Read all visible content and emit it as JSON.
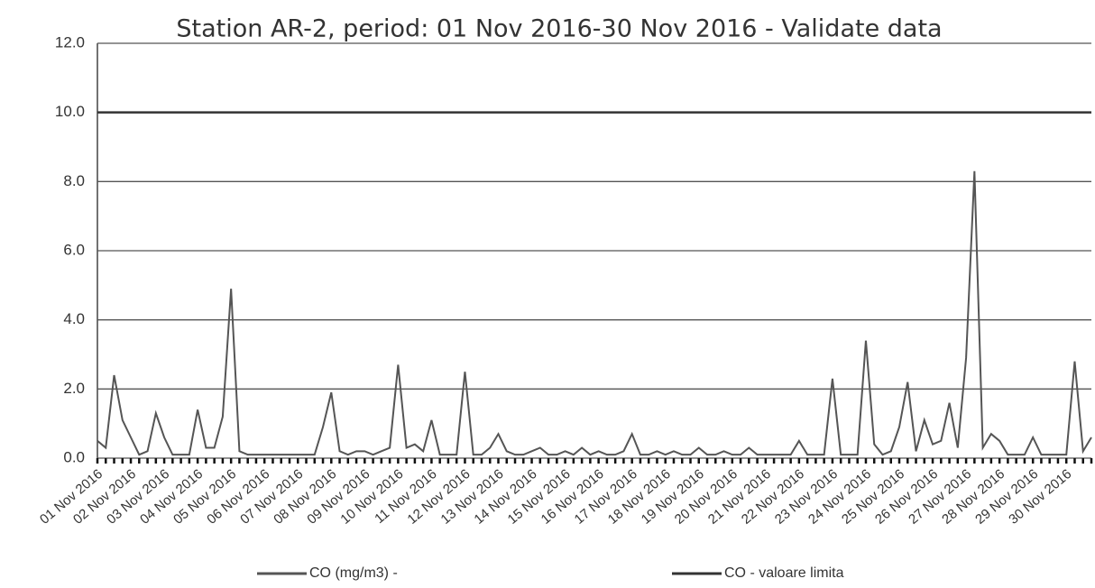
{
  "chart_data": {
    "type": "line",
    "title": "Station AR-2, period: 01 Nov 2016-30 Nov 2016 - Validate data",
    "categories": [
      "01 Nov 2016",
      null,
      null,
      null,
      "02 Nov 2016",
      null,
      null,
      null,
      "03 Nov 2016",
      null,
      null,
      null,
      "04 Nov 2016",
      null,
      null,
      null,
      "05 Nov 2016",
      null,
      null,
      null,
      "06 Nov 2016",
      null,
      null,
      null,
      "07 Nov 2016",
      null,
      null,
      null,
      "08 Nov 2016",
      null,
      null,
      null,
      "09 Nov 2016",
      null,
      null,
      null,
      "10 Nov 2016",
      null,
      null,
      null,
      "11 Nov 2016",
      null,
      null,
      null,
      "12 Nov 2016",
      null,
      null,
      null,
      "13 Nov 2016",
      null,
      null,
      null,
      "14 Nov 2016",
      null,
      null,
      null,
      "15 Nov 2016",
      null,
      null,
      null,
      "16 Nov 2016",
      null,
      null,
      null,
      "17 Nov 2016",
      null,
      null,
      null,
      "18 Nov 2016",
      null,
      null,
      null,
      "19 Nov 2016",
      null,
      null,
      null,
      "20 Nov 2016",
      null,
      null,
      null,
      "21 Nov 2016",
      null,
      null,
      null,
      "22 Nov 2016",
      null,
      null,
      null,
      "23 Nov 2016",
      null,
      null,
      null,
      "24 Nov 2016",
      null,
      null,
      null,
      "25 Nov 2016",
      null,
      null,
      null,
      "26 Nov 2016",
      null,
      null,
      null,
      "27 Nov 2016",
      null,
      null,
      null,
      "28 Nov 2016",
      null,
      null,
      null,
      "29 Nov 2016",
      null,
      null,
      null,
      "30 Nov 2016",
      null,
      null,
      null
    ],
    "series": [
      {
        "name": "CO (mg/m3) -",
        "color": "#555555",
        "values": [
          0.5,
          0.3,
          2.4,
          1.1,
          0.6,
          0.1,
          0.2,
          1.3,
          0.6,
          0.1,
          0.1,
          0.1,
          1.4,
          0.3,
          0.3,
          1.2,
          4.9,
          0.2,
          0.1,
          0.1,
          0.1,
          0.1,
          0.1,
          0.1,
          0.1,
          0.1,
          0.1,
          0.9,
          1.9,
          0.2,
          0.1,
          0.2,
          0.2,
          0.1,
          0.2,
          0.3,
          2.7,
          0.3,
          0.4,
          0.2,
          1.1,
          0.1,
          0.1,
          0.1,
          2.5,
          0.1,
          0.1,
          0.3,
          0.7,
          0.2,
          0.1,
          0.1,
          0.2,
          0.3,
          0.1,
          0.1,
          0.2,
          0.1,
          0.3,
          0.1,
          0.2,
          0.1,
          0.1,
          0.2,
          0.7,
          0.1,
          0.1,
          0.2,
          0.1,
          0.2,
          0.1,
          0.1,
          0.3,
          0.1,
          0.1,
          0.2,
          0.1,
          0.1,
          0.3,
          0.1,
          0.1,
          0.1,
          0.1,
          0.1,
          0.5,
          0.1,
          0.1,
          0.1,
          2.3,
          0.1,
          0.1,
          0.1,
          3.4,
          0.4,
          0.1,
          0.2,
          0.9,
          2.2,
          0.2,
          1.1,
          0.4,
          0.5,
          1.6,
          0.3,
          2.9,
          8.3,
          0.3,
          0.7,
          0.5,
          0.1,
          0.1,
          0.1,
          0.6,
          0.1,
          0.1,
          0.1,
          0.1,
          2.8,
          0.2,
          0.6
        ]
      },
      {
        "name": "CO - valoare limita",
        "color": "#333333",
        "values": [
          10,
          10,
          10,
          10,
          10,
          10,
          10,
          10,
          10,
          10,
          10,
          10,
          10,
          10,
          10,
          10,
          10,
          10,
          10,
          10,
          10,
          10,
          10,
          10,
          10,
          10,
          10,
          10,
          10,
          10,
          10,
          10,
          10,
          10,
          10,
          10,
          10,
          10,
          10,
          10,
          10,
          10,
          10,
          10,
          10,
          10,
          10,
          10,
          10,
          10,
          10,
          10,
          10,
          10,
          10,
          10,
          10,
          10,
          10,
          10,
          10,
          10,
          10,
          10,
          10,
          10,
          10,
          10,
          10,
          10,
          10,
          10,
          10,
          10,
          10,
          10,
          10,
          10,
          10,
          10,
          10,
          10,
          10,
          10,
          10,
          10,
          10,
          10,
          10,
          10,
          10,
          10,
          10,
          10,
          10,
          10,
          10,
          10,
          10,
          10,
          10,
          10,
          10,
          10,
          10,
          10,
          10,
          10,
          10,
          10,
          10,
          10,
          10,
          10,
          10,
          10,
          10,
          10,
          10,
          10
        ]
      }
    ],
    "ylim": [
      0,
      12
    ],
    "yticks": [
      {
        "value": 0,
        "label": "0.0"
      },
      {
        "value": 2,
        "label": "2.0"
      },
      {
        "value": 4,
        "label": "4.0"
      },
      {
        "value": 6,
        "label": "6.0"
      },
      {
        "value": 8,
        "label": "8.0"
      },
      {
        "value": 10,
        "label": "10.0"
      },
      {
        "value": 12,
        "label": "12.0"
      }
    ],
    "grid": true
  }
}
